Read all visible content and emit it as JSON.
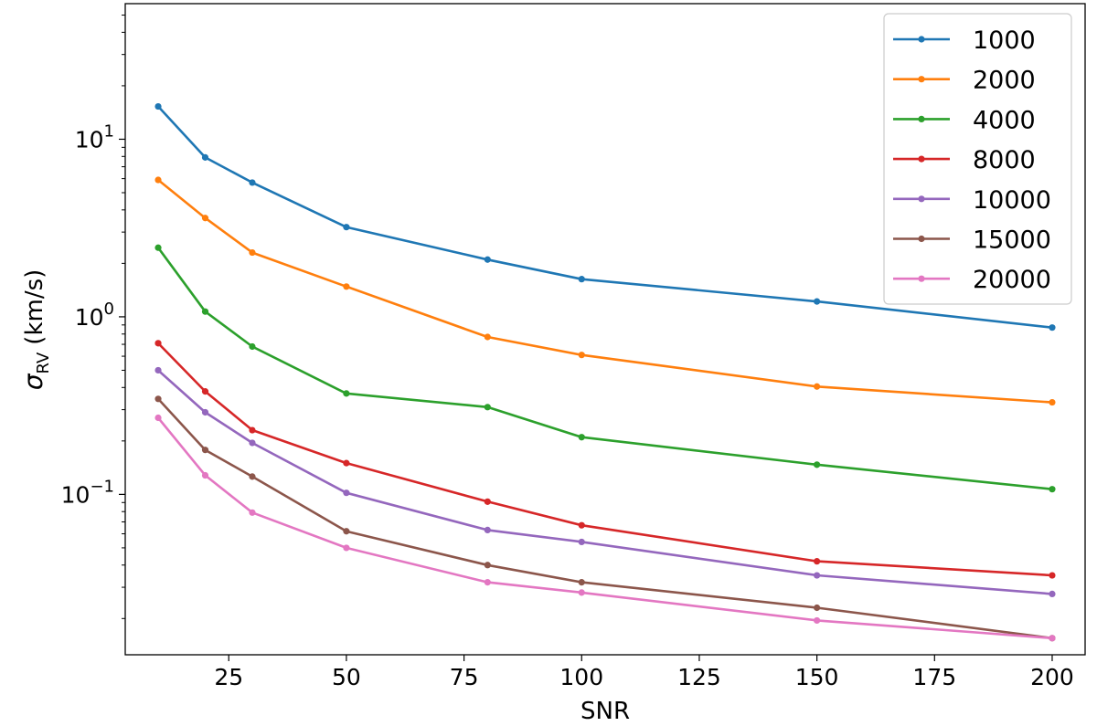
{
  "chart_data": {
    "type": "line",
    "xlabel": "SNR",
    "ylabel_main": "σ",
    "ylabel_sub": "RV",
    "ylabel_unit": "(km/s)",
    "yscale": "log",
    "xlim": [
      3,
      207
    ],
    "ylim": [
      0.0125,
      58
    ],
    "grid": false,
    "legend_position": "top-right",
    "x_ticks": [
      25,
      50,
      75,
      100,
      125,
      150,
      175,
      200
    ],
    "x_tick_labels": [
      "25",
      "50",
      "75",
      "100",
      "125",
      "150",
      "175",
      "200"
    ],
    "y_ticks": [
      {
        "value": 10,
        "base": "10",
        "exp": "1"
      },
      {
        "value": 1,
        "base": "10",
        "exp": "0"
      },
      {
        "value": 0.1,
        "base": "10",
        "exp": "−1"
      }
    ],
    "x": [
      10,
      20,
      30,
      50,
      80,
      100,
      150,
      200
    ],
    "series": [
      {
        "name": "1000",
        "color": "#1f77b4",
        "values": [
          15.3,
          7.9,
          5.7,
          3.2,
          2.1,
          1.63,
          1.22,
          0.87
        ]
      },
      {
        "name": "2000",
        "color": "#ff7f0e",
        "values": [
          5.9,
          3.6,
          2.3,
          1.48,
          0.77,
          0.61,
          0.405,
          0.33
        ]
      },
      {
        "name": "4000",
        "color": "#2ca02c",
        "values": [
          2.45,
          1.07,
          0.68,
          0.37,
          0.31,
          0.21,
          0.147,
          0.107
        ]
      },
      {
        "name": "8000",
        "color": "#d62728",
        "values": [
          0.71,
          0.38,
          0.23,
          0.15,
          0.091,
          0.067,
          0.042,
          0.035
        ]
      },
      {
        "name": "10000",
        "color": "#9467bd",
        "values": [
          0.5,
          0.29,
          0.195,
          0.102,
          0.063,
          0.054,
          0.035,
          0.0275
        ]
      },
      {
        "name": "15000",
        "color": "#8c564b",
        "values": [
          0.345,
          0.178,
          0.126,
          0.062,
          0.04,
          0.032,
          0.023,
          0.0155
        ]
      },
      {
        "name": "20000",
        "color": "#e377c2",
        "values": [
          0.27,
          0.128,
          0.079,
          0.05,
          0.032,
          0.028,
          0.0195,
          0.0155
        ]
      }
    ]
  }
}
